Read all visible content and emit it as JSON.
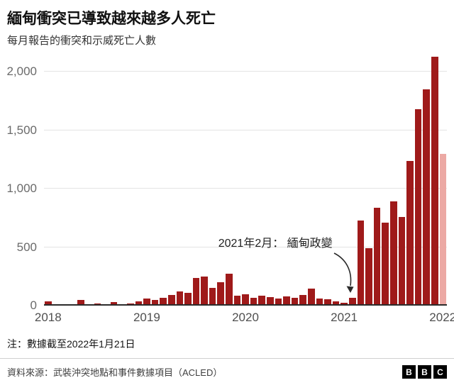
{
  "chart_data": {
    "type": "bar",
    "title": "緬甸衝突已導致越來越多人死亡",
    "subtitle": "每月報告的衝突和示威死亡人數",
    "x": [
      "2018-01",
      "2018-02",
      "2018-03",
      "2018-04",
      "2018-05",
      "2018-06",
      "2018-07",
      "2018-08",
      "2018-09",
      "2018-10",
      "2018-11",
      "2018-12",
      "2019-01",
      "2019-02",
      "2019-03",
      "2019-04",
      "2019-05",
      "2019-06",
      "2019-07",
      "2019-08",
      "2019-09",
      "2019-10",
      "2019-11",
      "2019-12",
      "2020-01",
      "2020-02",
      "2020-03",
      "2020-04",
      "2020-05",
      "2020-06",
      "2020-07",
      "2020-08",
      "2020-09",
      "2020-10",
      "2020-11",
      "2020-12",
      "2021-01",
      "2021-02",
      "2021-03",
      "2021-04",
      "2021-05",
      "2021-06",
      "2021-07",
      "2021-08",
      "2021-09",
      "2021-10",
      "2021-11",
      "2021-12",
      "2022-01"
    ],
    "values": [
      40,
      15,
      10,
      8,
      50,
      12,
      18,
      6,
      30,
      12,
      18,
      40,
      60,
      50,
      70,
      95,
      120,
      110,
      235,
      250,
      150,
      200,
      275,
      85,
      100,
      70,
      85,
      75,
      60,
      80,
      65,
      90,
      145,
      60,
      55,
      35,
      25,
      70,
      730,
      490,
      840,
      710,
      890,
      760,
      1240,
      1680,
      1850,
      2130,
      1300
    ],
    "ylim": [
      0,
      2000
    ],
    "yticks": [
      0,
      500,
      1000,
      1500,
      2000
    ],
    "ytick_labels": [
      "0",
      "500",
      "1,000",
      "1,500",
      "2,000"
    ],
    "year_labels": [
      {
        "label": "2018",
        "index": 0
      },
      {
        "label": "2019",
        "index": 12
      },
      {
        "label": "2020",
        "index": 24
      },
      {
        "label": "2021",
        "index": 36
      },
      {
        "label": "2022",
        "index": 48
      }
    ],
    "bar_color": "#9f1a1a",
    "highlight_color": "#eca9a4",
    "highlight_index": 48,
    "grid": "horizontal",
    "legend": "none",
    "annotation": {
      "text": "2021年2月： 緬甸政變",
      "target": "2021-02",
      "target_index": 37
    }
  },
  "footer": {
    "note": "注：數據截至2022年1月21日",
    "source": "資料來源：武裝沖突地點和事件數據項目（ACLED）",
    "logo_letters": [
      "B",
      "B",
      "C"
    ]
  }
}
